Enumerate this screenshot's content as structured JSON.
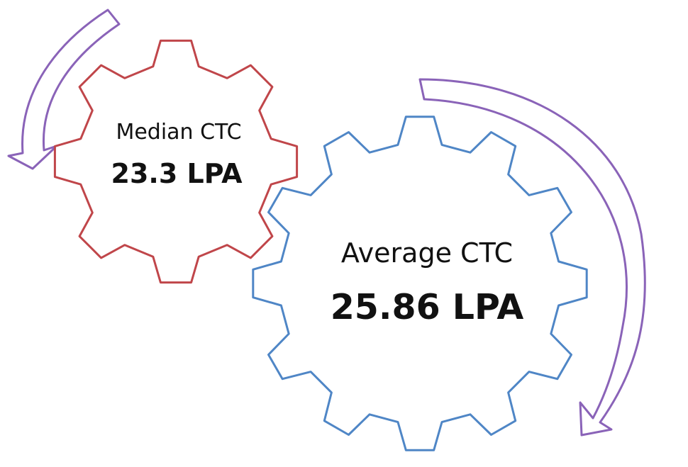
{
  "median": {
    "label": "Median CTC",
    "value": "23.3 LPA",
    "color": "#c0464a"
  },
  "average": {
    "label": "Average CTC",
    "value": "25.86 LPA",
    "color": "#4f86c6"
  },
  "arrow_color": "#8a63b8"
}
